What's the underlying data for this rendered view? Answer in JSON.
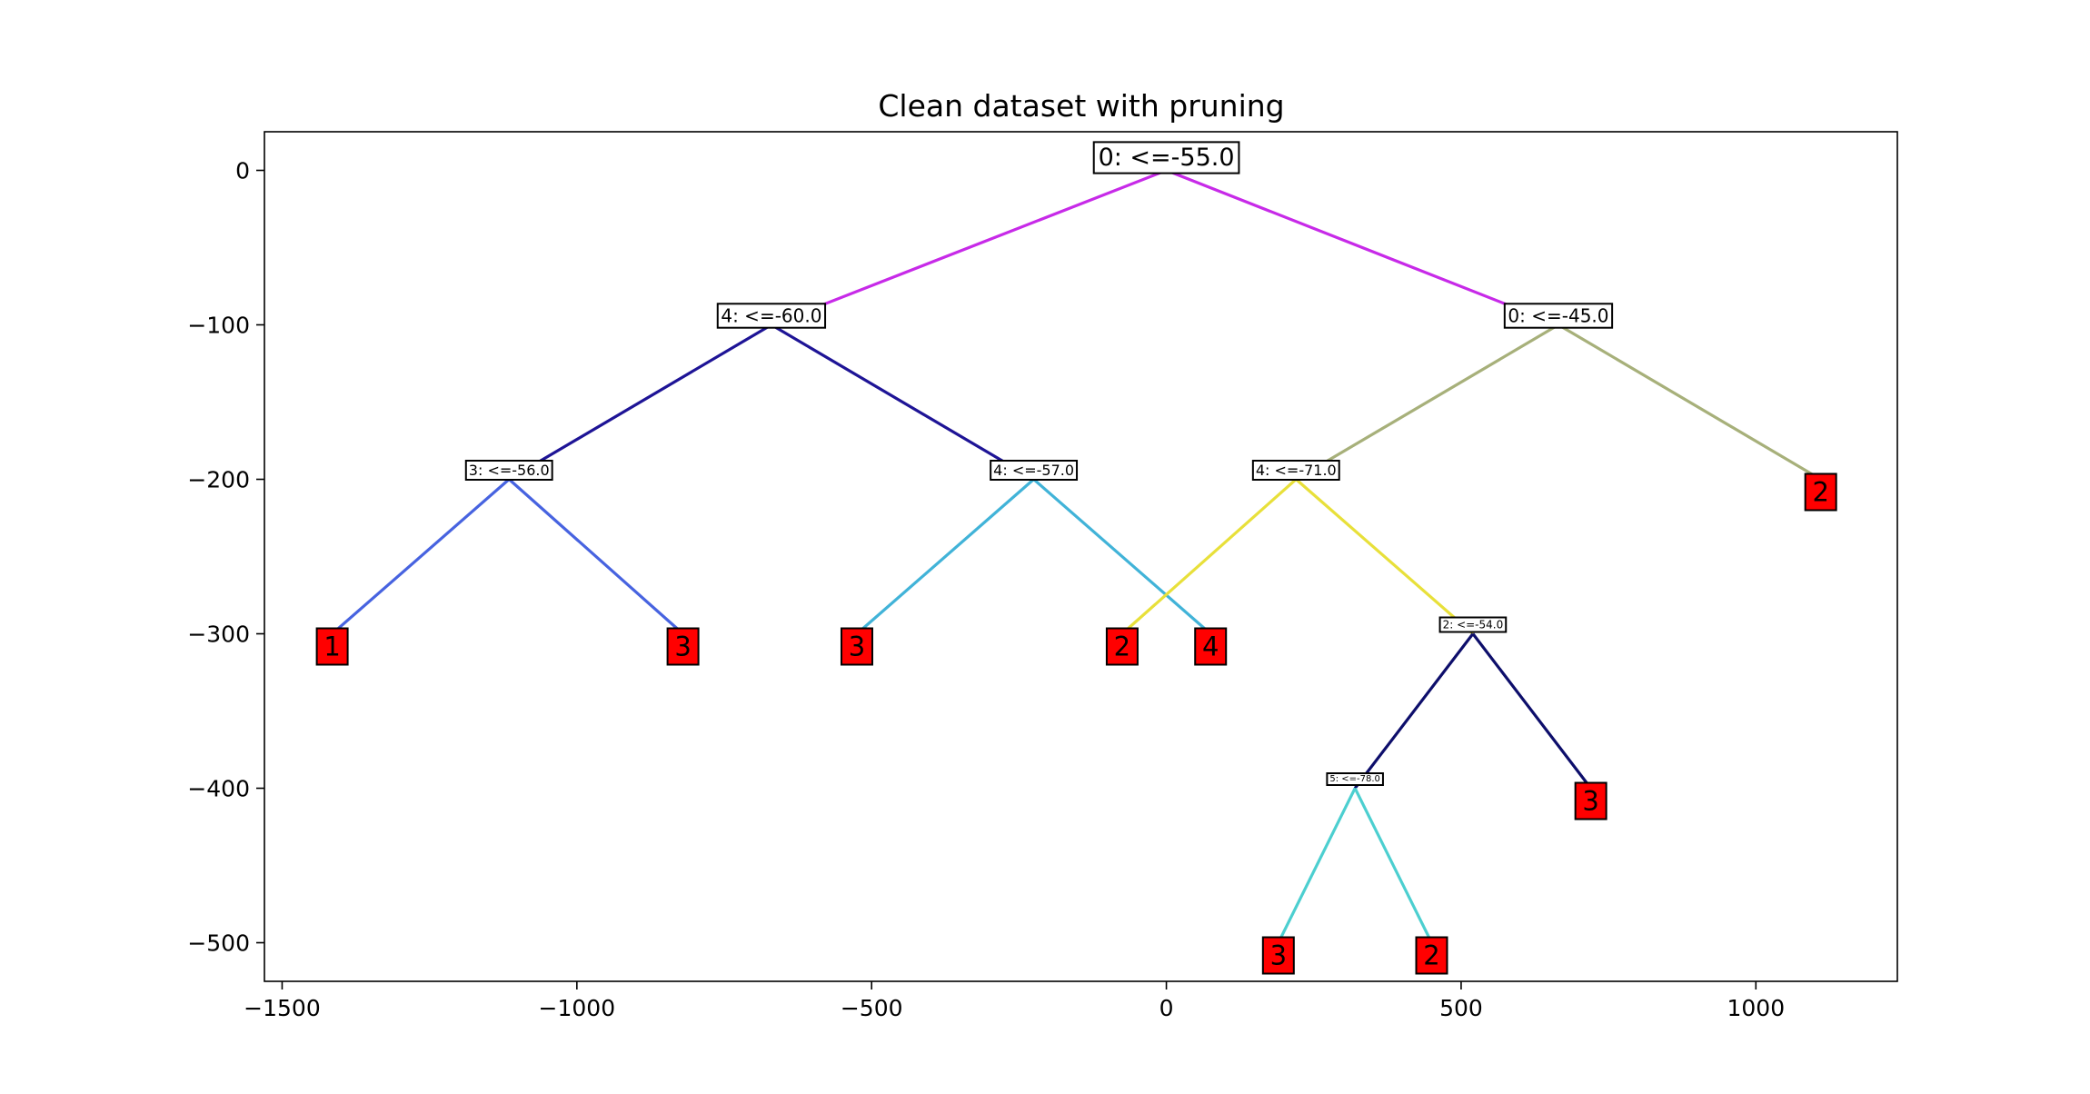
{
  "chart_data": {
    "type": "tree",
    "title": "Clean dataset with pruning",
    "xlabel": "",
    "ylabel": "",
    "xlim": [
      -1530,
      1240
    ],
    "ylim": [
      -525,
      25
    ],
    "x_ticks": [
      -1500,
      -1000,
      -500,
      0,
      500,
      1000
    ],
    "x_tick_labels": [
      "−1500",
      "−1000",
      "−500",
      "0",
      "500",
      "1000"
    ],
    "y_ticks": [
      0,
      -100,
      -200,
      -300,
      -400,
      -500
    ],
    "y_tick_labels": [
      "0",
      "−100",
      "−200",
      "−300",
      "−400",
      "−500"
    ],
    "grid": false,
    "leaf_color": "#ff0000",
    "nodes": [
      {
        "id": "n0",
        "label": "0: <=-55.0",
        "x": 0,
        "y": 0,
        "leaf": false,
        "depth": 0
      },
      {
        "id": "n1",
        "label": "4: <=-60.0",
        "x": -670,
        "y": -100,
        "leaf": false,
        "depth": 1
      },
      {
        "id": "n2",
        "label": "0: <=-45.0",
        "x": 665,
        "y": -100,
        "leaf": false,
        "depth": 1
      },
      {
        "id": "n3",
        "label": "3: <=-56.0",
        "x": -1115,
        "y": -200,
        "leaf": false,
        "depth": 2
      },
      {
        "id": "n4",
        "label": "4: <=-57.0",
        "x": -225,
        "y": -200,
        "leaf": false,
        "depth": 2
      },
      {
        "id": "n5",
        "label": "4: <=-71.0",
        "x": 220,
        "y": -200,
        "leaf": false,
        "depth": 2
      },
      {
        "id": "n6",
        "label": "2",
        "x": 1110,
        "y": -200,
        "leaf": true
      },
      {
        "id": "n7",
        "label": "1",
        "x": -1415,
        "y": -300,
        "leaf": true
      },
      {
        "id": "n8",
        "label": "3",
        "x": -820,
        "y": -300,
        "leaf": true
      },
      {
        "id": "n9",
        "label": "3",
        "x": -525,
        "y": -300,
        "leaf": true
      },
      {
        "id": "n10",
        "label": "4",
        "x": 75,
        "y": -300,
        "leaf": true
      },
      {
        "id": "n11",
        "label": "2",
        "x": -75,
        "y": -300,
        "leaf": true
      },
      {
        "id": "n12",
        "label": "2: <=-54.0",
        "x": 520,
        "y": -300,
        "leaf": false,
        "depth": 3
      },
      {
        "id": "n13",
        "label": "5: <=-78.0",
        "x": 320,
        "y": -400,
        "leaf": false,
        "depth": 4
      },
      {
        "id": "n14",
        "label": "3",
        "x": 720,
        "y": -400,
        "leaf": true
      },
      {
        "id": "n15",
        "label": "3",
        "x": 190,
        "y": -500,
        "leaf": true
      },
      {
        "id": "n16",
        "label": "2",
        "x": 450,
        "y": -500,
        "leaf": true
      }
    ],
    "edges": [
      {
        "from": "n0",
        "to": "n1",
        "color": "#c72ae8"
      },
      {
        "from": "n0",
        "to": "n2",
        "color": "#c72ae8"
      },
      {
        "from": "n1",
        "to": "n3",
        "color": "#1e1496"
      },
      {
        "from": "n1",
        "to": "n4",
        "color": "#1e1496"
      },
      {
        "from": "n2",
        "to": "n5",
        "color": "#a7b07a"
      },
      {
        "from": "n2",
        "to": "n6",
        "color": "#a7b07a"
      },
      {
        "from": "n3",
        "to": "n7",
        "color": "#4763e0"
      },
      {
        "from": "n3",
        "to": "n8",
        "color": "#4763e0"
      },
      {
        "from": "n4",
        "to": "n9",
        "color": "#41b3d8"
      },
      {
        "from": "n4",
        "to": "n10",
        "color": "#41b3d8"
      },
      {
        "from": "n5",
        "to": "n11",
        "color": "#e8e03a"
      },
      {
        "from": "n5",
        "to": "n12",
        "color": "#e8e03a"
      },
      {
        "from": "n12",
        "to": "n13",
        "color": "#0d0e6b"
      },
      {
        "from": "n12",
        "to": "n14",
        "color": "#0d0e6b"
      },
      {
        "from": "n13",
        "to": "n15",
        "color": "#4ccfd0"
      },
      {
        "from": "n13",
        "to": "n16",
        "color": "#4ccfd0"
      }
    ]
  }
}
